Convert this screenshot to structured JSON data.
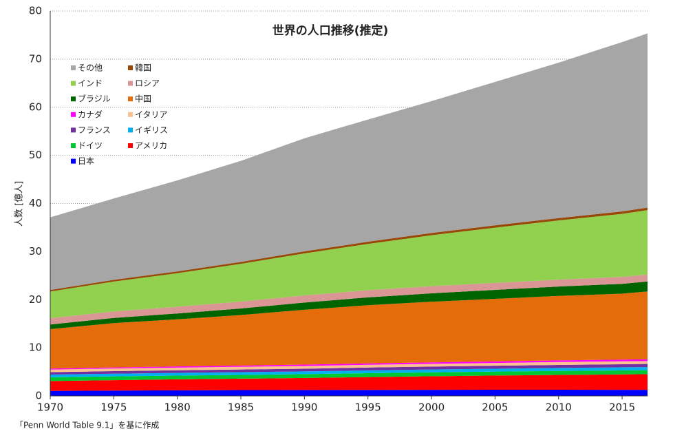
{
  "chart_data": {
    "type": "stacked_area",
    "title": "世界の人口推移(推定)",
    "y_label": "人数 [億人]",
    "source": "「Penn World Table 9.1」を基に作成",
    "x": [
      1970,
      1975,
      1980,
      1985,
      1990,
      1995,
      2000,
      2005,
      2010,
      2015,
      2017
    ],
    "xlim": [
      1970,
      2017
    ],
    "xticks": [
      1970,
      1975,
      1980,
      1985,
      1990,
      1995,
      2000,
      2005,
      2010,
      2015
    ],
    "ylim": [
      0,
      80
    ],
    "yticks": [
      0,
      10,
      20,
      30,
      40,
      50,
      60,
      70,
      80
    ],
    "grid": true,
    "legend": "upper left",
    "series": [
      {
        "name": "日本",
        "color": "#0000ff",
        "values": [
          1.04,
          1.11,
          1.17,
          1.21,
          1.23,
          1.25,
          1.27,
          1.28,
          1.28,
          1.27,
          1.27
        ]
      },
      {
        "name": "アメリカ",
        "color": "#ff0000",
        "values": [
          2.05,
          2.16,
          2.28,
          2.38,
          2.5,
          2.66,
          2.82,
          2.96,
          3.09,
          3.21,
          3.25
        ]
      },
      {
        "name": "ドイツ",
        "color": "#00c832",
        "values": [
          0.78,
          0.79,
          0.78,
          0.78,
          0.79,
          0.82,
          0.82,
          0.82,
          0.81,
          0.82,
          0.82
        ]
      },
      {
        "name": "イギリス",
        "color": "#00b0f0",
        "values": [
          0.56,
          0.56,
          0.56,
          0.57,
          0.57,
          0.58,
          0.59,
          0.6,
          0.63,
          0.65,
          0.66
        ]
      },
      {
        "name": "フランス",
        "color": "#7030a0",
        "values": [
          0.51,
          0.53,
          0.54,
          0.56,
          0.57,
          0.59,
          0.6,
          0.62,
          0.63,
          0.64,
          0.65
        ]
      },
      {
        "name": "イタリア",
        "color": "#fac090",
        "values": [
          0.54,
          0.55,
          0.56,
          0.56,
          0.57,
          0.57,
          0.57,
          0.58,
          0.6,
          0.6,
          0.6
        ]
      },
      {
        "name": "カナダ",
        "color": "#ff00ff",
        "values": [
          0.21,
          0.23,
          0.24,
          0.26,
          0.28,
          0.29,
          0.31,
          0.32,
          0.34,
          0.36,
          0.37
        ]
      },
      {
        "name": "中国",
        "color": "#e46c0a",
        "values": [
          8.2,
          9.2,
          9.8,
          10.5,
          11.4,
          12.1,
          12.6,
          13.0,
          13.4,
          13.7,
          14.1
        ]
      },
      {
        "name": "ブラジル",
        "color": "#006400",
        "values": [
          0.96,
          1.08,
          1.21,
          1.36,
          1.5,
          1.62,
          1.75,
          1.86,
          1.96,
          2.05,
          2.07
        ]
      },
      {
        "name": "ロシア",
        "color": "#d99694",
        "values": [
          1.3,
          1.34,
          1.39,
          1.43,
          1.48,
          1.48,
          1.47,
          1.44,
          1.43,
          1.44,
          1.44
        ]
      },
      {
        "name": "インド",
        "color": "#92d050",
        "values": [
          5.55,
          6.23,
          6.98,
          7.85,
          8.73,
          9.64,
          10.6,
          11.5,
          12.3,
          13.1,
          13.4
        ]
      },
      {
        "name": "韓国",
        "color": "#984807",
        "values": [
          0.32,
          0.35,
          0.38,
          0.4,
          0.43,
          0.45,
          0.47,
          0.48,
          0.49,
          0.51,
          0.51
        ]
      },
      {
        "name": "その他",
        "color": "#a6a6a6",
        "values": [
          15.1,
          16.9,
          18.9,
          21.0,
          23.5,
          25.4,
          27.4,
          29.8,
          32.3,
          35.2,
          36.2
        ]
      }
    ]
  }
}
